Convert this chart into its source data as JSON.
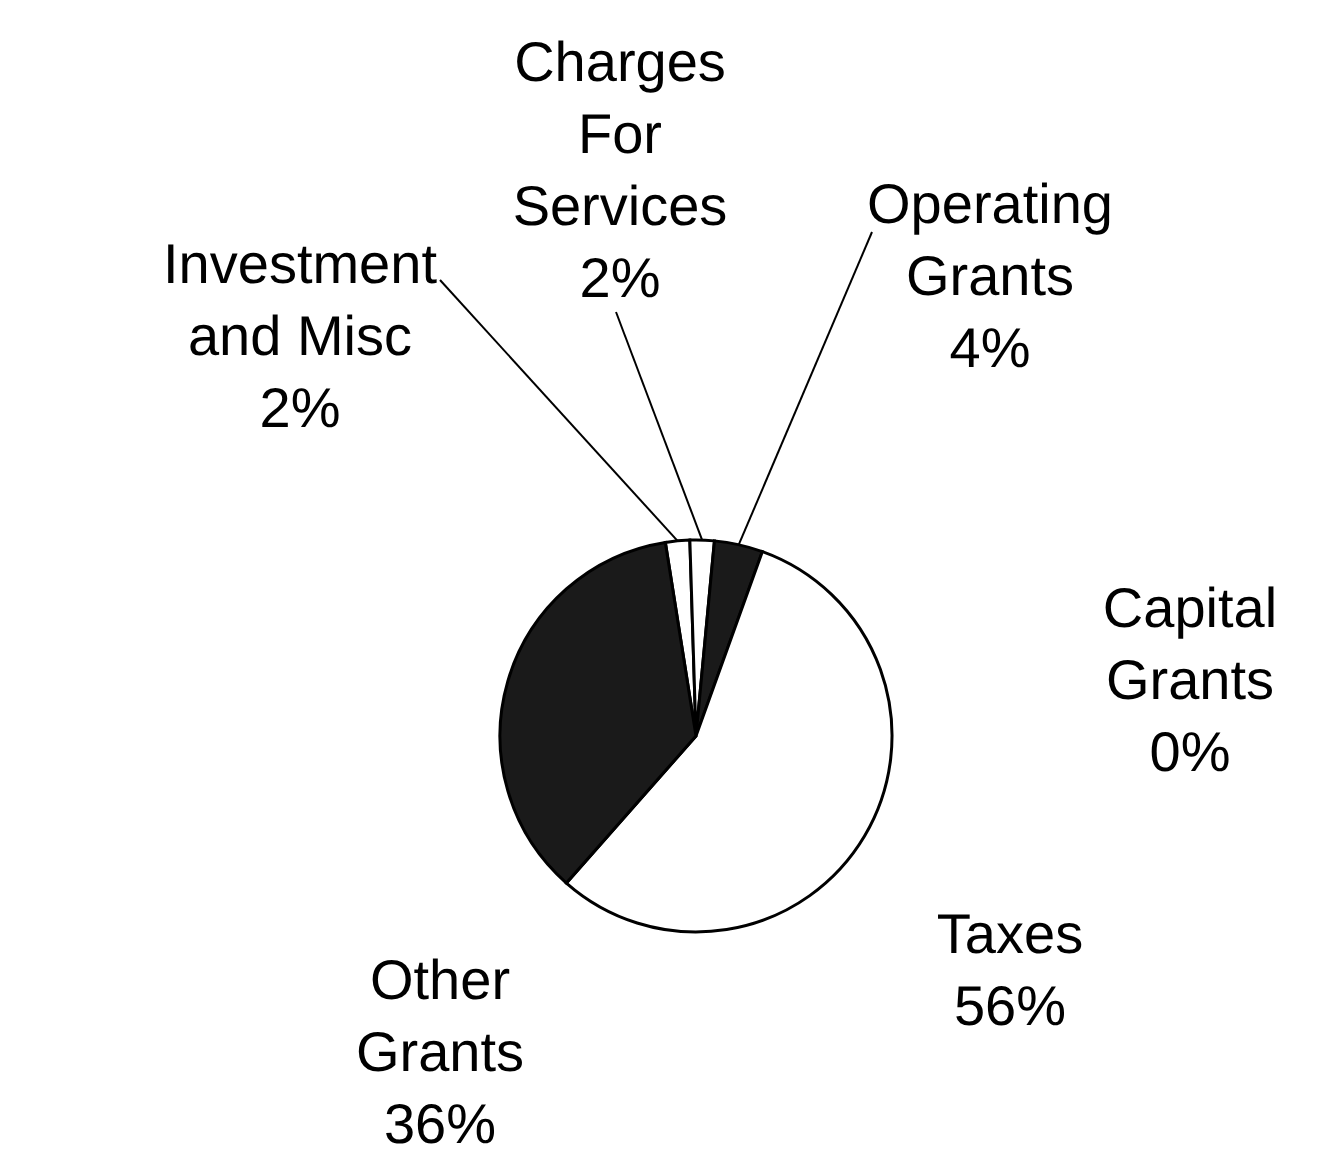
{
  "chart_data": {
    "type": "pie",
    "categories": [
      "Investment and Misc",
      "Charges For Services",
      "Operating Grants",
      "Capital Grants",
      "Taxes",
      "Other Grants"
    ],
    "values": [
      2,
      2,
      4,
      0,
      56,
      36
    ],
    "value_labels": [
      "2%",
      "2%",
      "4%",
      "0%",
      "56%",
      "36%"
    ],
    "colors": [
      "#ffffff",
      "#ffffff",
      "#1a1a1a",
      "#1a1a1a",
      "#ffffff",
      "#1a1a1a"
    ]
  }
}
